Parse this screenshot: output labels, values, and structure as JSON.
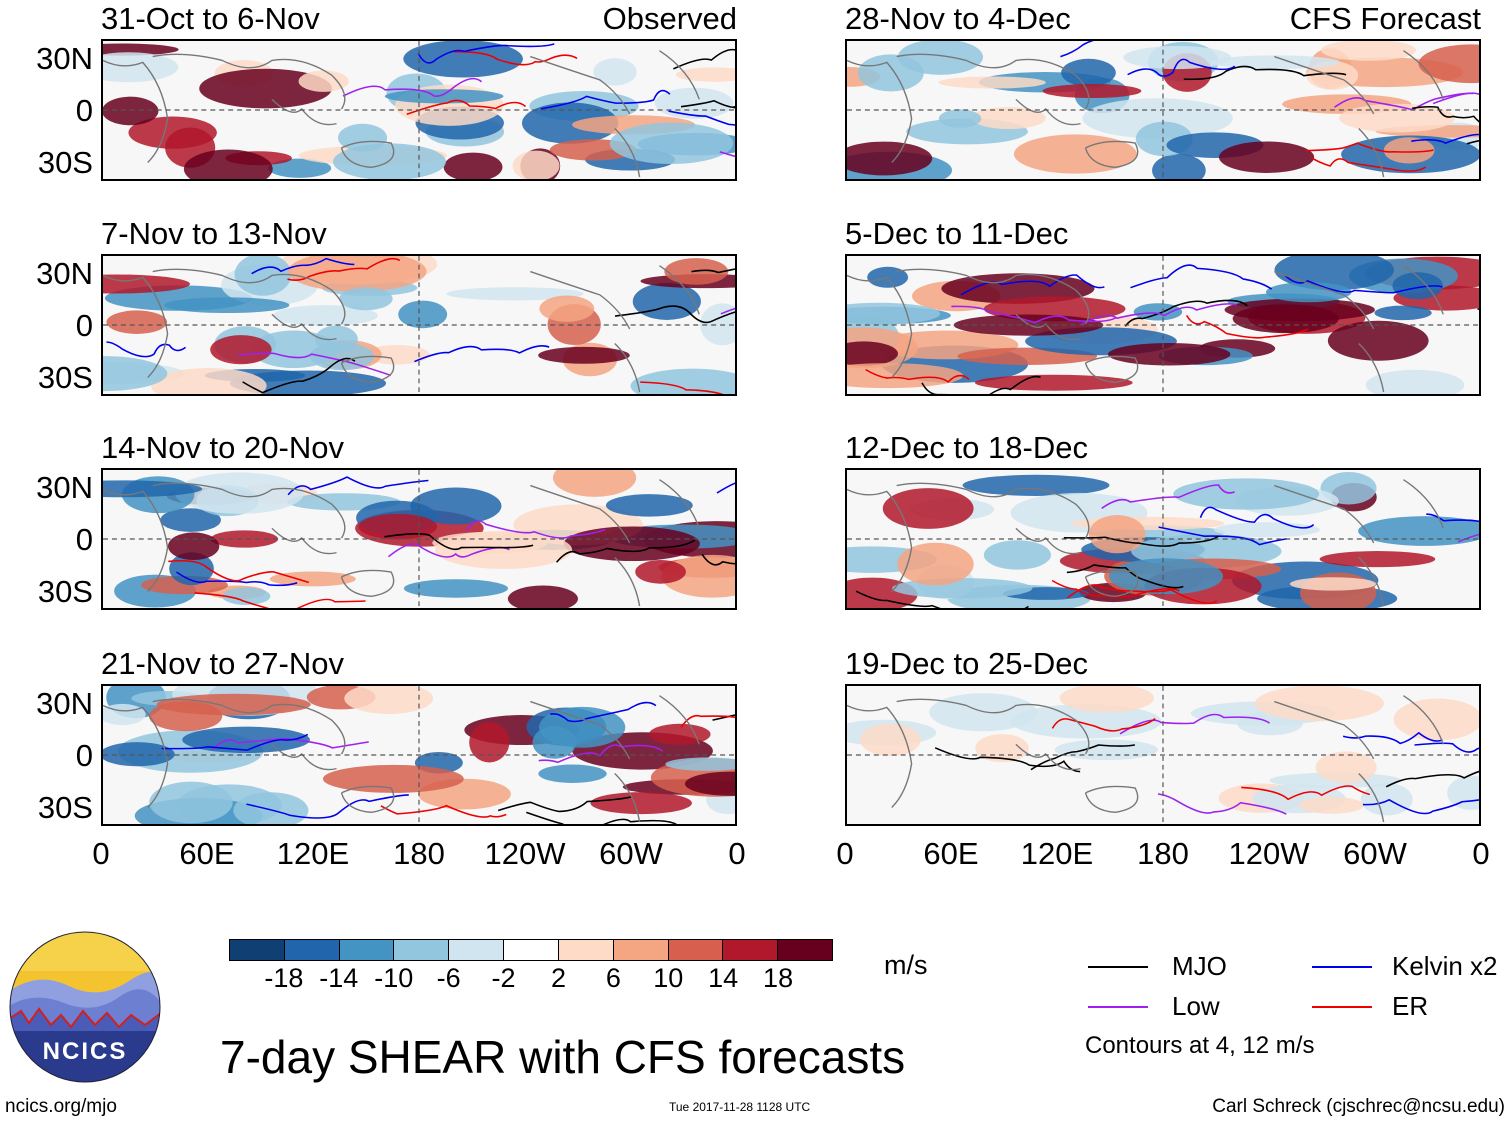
{
  "panels": [
    {
      "title": "31-Oct to 6-Nov",
      "tag": "Observed",
      "variant": 1
    },
    {
      "title": "7-Nov to 13-Nov",
      "tag": "",
      "variant": 2
    },
    {
      "title": "14-Nov to 20-Nov",
      "tag": "",
      "variant": 3
    },
    {
      "title": "21-Nov to 27-Nov",
      "tag": "",
      "variant": 4
    },
    {
      "title": "28-Nov to 4-Dec",
      "tag": "CFS Forecast",
      "variant": 5
    },
    {
      "title": "5-Dec to 11-Dec",
      "tag": "",
      "variant": 6
    },
    {
      "title": "12-Dec to 18-Dec",
      "tag": "",
      "variant": 7
    },
    {
      "title": "19-Dec to 25-Dec",
      "tag": "",
      "variant": 8
    }
  ],
  "lat_labels": [
    "30N",
    "0",
    "30S"
  ],
  "lon_labels": [
    "0",
    "60E",
    "120E",
    "180",
    "120W",
    "60W",
    "0"
  ],
  "colorbar": {
    "colors": [
      "#0f3f73",
      "#2166ac",
      "#4393c3",
      "#92c5de",
      "#d1e5f0",
      "#ffffff",
      "#fddbc7",
      "#f4a582",
      "#d6604d",
      "#b2182b",
      "#67001f"
    ],
    "ticks": [
      "-18",
      "-14",
      "-10",
      "-6",
      "-2",
      "2",
      "6",
      "10",
      "14",
      "18"
    ],
    "unit": "m/s"
  },
  "legend": {
    "items": [
      {
        "label": "MJO",
        "color": "#000000"
      },
      {
        "label": "Kelvin x2",
        "color": "#0000ee"
      },
      {
        "label": "Low",
        "color": "#a020f0"
      },
      {
        "label": "ER",
        "color": "#ee0000"
      }
    ],
    "note": "Contours at 4, 12 m/s"
  },
  "title": "7-day SHEAR with CFS forecasts",
  "footer": {
    "left": "ncics.org/mjo",
    "center": "Tue 2017-11-28 1128 UTC",
    "right": "Carl Schreck (cjschrec@ncsu.edu)"
  },
  "logo": {
    "text": "NCICS"
  }
}
